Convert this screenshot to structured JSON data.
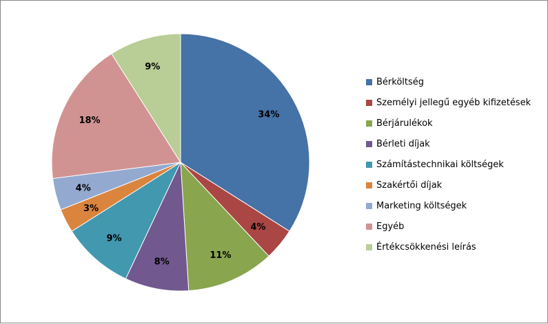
{
  "chart_data": {
    "type": "pie",
    "title": "",
    "categories": [
      "Bérköltség",
      "Személyi jellegű egyéb kifizetések",
      "Bérjárulékok",
      "Bérleti díjak",
      "Számítástechnikai költségek",
      "Szakértői díjak",
      "Marketing költségek",
      "Egyéb",
      "Értékcsökkenési leírás"
    ],
    "values": [
      34,
      4,
      11,
      8,
      9,
      3,
      4,
      18,
      9
    ],
    "labels": [
      "34%",
      "4%",
      "11%",
      "8%",
      "9%",
      "3%",
      "4%",
      "18%",
      "9%"
    ],
    "colors": [
      "#4572A7",
      "#AA4643",
      "#89A54E",
      "#71588F",
      "#4198AF",
      "#DB843D",
      "#93A9CF",
      "#D19392",
      "#B9CD96"
    ],
    "legend_position": "right",
    "start_angle": "top, clockwise"
  }
}
